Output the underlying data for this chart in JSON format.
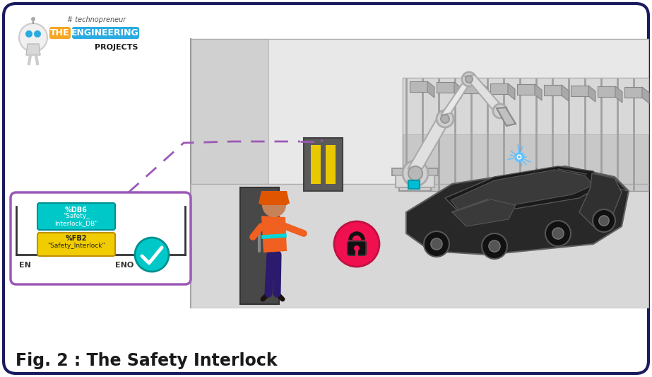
{
  "title": "Fig. 2 : The Safety Interlock",
  "border_color": "#1a1a5e",
  "background_color": "#ffffff",
  "logo_text_the": "THE",
  "logo_text_engineering": "ENGINEERING",
  "logo_text_projects": "PROJECTS",
  "logo_text_hashtag": "# technopreneur",
  "logo_color_the": "#f5a623",
  "logo_color_engineering": "#29abe2",
  "logo_text_color": "#ffffff",
  "ladder_box_color": "#9b59b6",
  "nob_label": "%DB6",
  "nob_value1": "\"Safety_",
  "nob_value2": "Interlock_DB\"",
  "nfb_label": "%FB2",
  "nfb_value": "\"Safety_Interlock\"",
  "nob_color": "#00c8c8",
  "nfb_color": "#f0cc00",
  "en_label": "EN",
  "eno_label": "ENO",
  "checkmark_color": "#00c8c8",
  "dashed_line_color": "#9b59b6",
  "lock_circle_color": "#f01050",
  "factory_top_color": "#d8d8d8",
  "factory_wall_color": "#e0e0e0",
  "factory_side_color": "#c8c8c8",
  "door_color": "#505050",
  "plc_box_color": "#606060",
  "plc_yellow_strip": "#e8c800",
  "worker_hat_color": "#e05500",
  "worker_vest_color": "#f06020",
  "worker_cyan_stripe": "#00d8d8",
  "worker_pants_color": "#2c1a6e",
  "worker_skin_color": "#c8825a",
  "robot_light_color": "#e8e8e8",
  "robot_dark_color": "#c0c0c0",
  "car_body_color": "#282828",
  "car_outline_color": "#888888",
  "conveyor_color": "#b0b0b0",
  "spark_color": "#60c0ff",
  "rail_color": "#333333",
  "floor_lower_color": "#b0b0b0"
}
